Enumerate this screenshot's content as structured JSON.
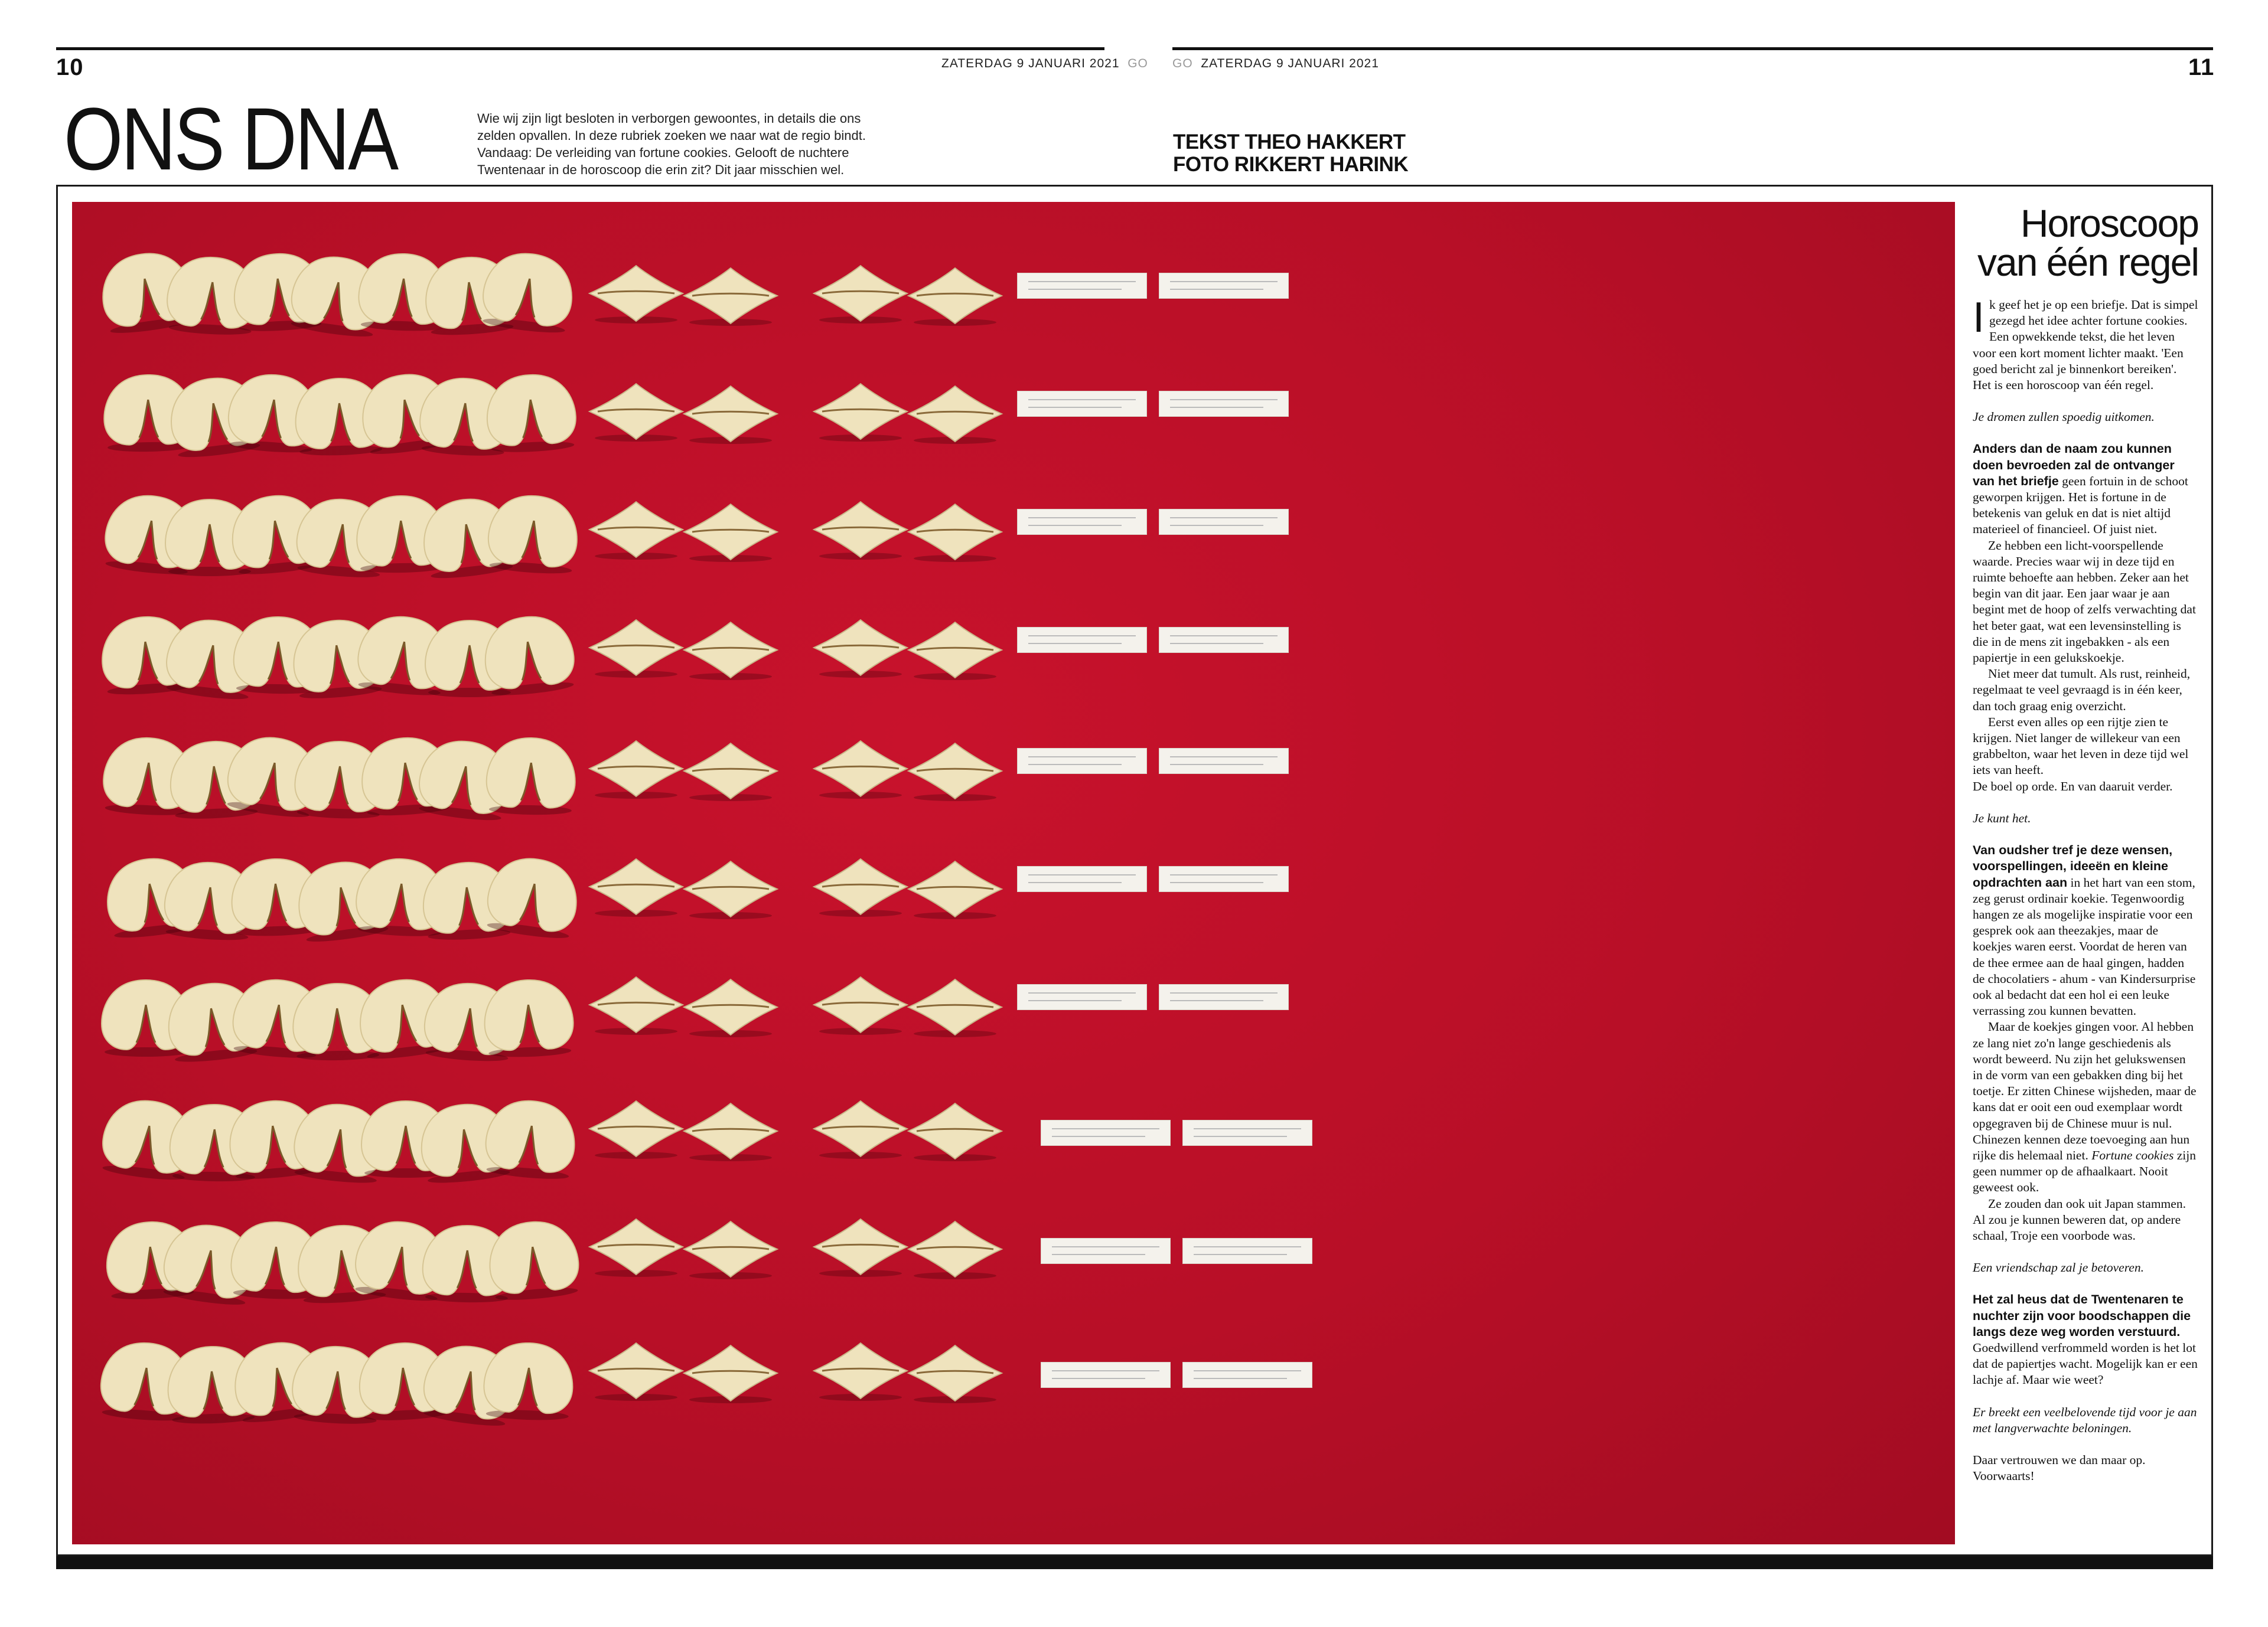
{
  "header": {
    "left_page_number": "10",
    "right_page_number": "11",
    "left_date": "ZATERDAG 9 JANUARI 2021",
    "left_section": "GO",
    "right_section": "GO",
    "right_date": "ZATERDAG 9 JANUARI 2021"
  },
  "rubric": {
    "title": "ONS DNA",
    "intro": "Wie wij zijn ligt besloten in verborgen gewoontes, in details die ons zelden opvallen. In deze rubriek zoeken we naar wat de regio bindt. Vandaag: De verleiding van fortune cookies. Gelooft de nuchtere Twentenaar in de horoscoop die erin zit? Dit jaar misschien wel."
  },
  "credits": {
    "text_line": "TEKST THEO HAKKERT",
    "photo_line": "FOTO RIKKERT HARINK"
  },
  "photo": {
    "subject": "fortune-cookies-on-red",
    "background_color": "#b80f27",
    "cookie_color": "#efe3bd",
    "slip_color": "#f4f2ec"
  },
  "article": {
    "headline_1": "Horoscoop",
    "headline_2": "van één regel",
    "dropcap": "I",
    "p1": "k geef het je op een briefje. Dat is simpel gezegd het idee achter fortune cookies. Een opwekkende tekst, die het leven voor een kort moment lichter maakt. 'Een goed bericht zal je binnenkort bereiken'.",
    "p2": "Het is een horoscoop van één regel.",
    "q1": "Je dromen zullen spoedig uitkomen.",
    "s2_lead": "Anders dan de naam zou kunnen doen bevroeden zal de ontvanger van het briefje",
    "s2_rest": " geen fortuin in de schoot geworpen krijgen. Het is fortune in de betekenis van geluk en dat is niet altijd materieel of financieel. Of juist niet.",
    "s2_p2": "Ze hebben een licht-voorspellende waarde. Precies waar wij in deze tijd en ruimte behoefte aan hebben. Zeker aan het begin van dit jaar. Een jaar waar je aan begint met de hoop of zelfs verwachting dat het beter gaat, wat een levensinstelling is die in de mens zit ingebakken - als een papiertje in een gelukskoekje.",
    "s2_p3": "Niet meer dat tumult. Als rust, reinheid, regelmaat te veel gevraagd is in één keer, dan toch graag enig overzicht.",
    "s2_p4": "Eerst even alles op een rijtje zien te krijgen. Niet langer de willekeur van een grabbelton, waar het leven in deze tijd wel iets van heeft.",
    "s2_p5": "De boel op orde. En van daaruit verder.",
    "q2": "Je kunt het.",
    "s3_lead": "Van oudsher tref je deze wensen, voorspellingen, ideeën en kleine opdrachten aan",
    "s3_rest": " in het hart van een stom, zeg gerust ordinair koekie. Tegenwoordig hangen ze als mogelijke inspiratie voor een gesprek ook aan theezakjes, maar de koekjes waren eerst. Voordat de heren van de thee ermee aan de haal gingen, hadden de chocolatiers - ahum - van Kindersurprise ook al bedacht dat een hol ei een leuke verrassing zou kunnen bevatten.",
    "s3_p2": "Maar de koekjes gingen voor. Al hebben ze lang niet zo'n lange geschiedenis als wordt beweerd. Nu zijn het gelukswensen in de vorm van een gebakken ding bij het toetje. Er zitten Chinese wijsheden, maar de kans dat er ooit een oud exemplaar wordt opgegraven bij de Chinese muur is nul. Chinezen kennen deze toevoeging aan hun rijke dis helemaal niet.",
    "s3_p2_italic": "Fortune cookies",
    "s3_p2_end": " zijn geen nummer op de afhaalkaart. Nooit geweest ook.",
    "s3_p3": "Ze zouden dan ook uit Japan stammen. Al zou je kunnen beweren dat, op andere schaal, Troje een voorbode was.",
    "q3": "Een vriendschap zal je betoveren.",
    "s4_lead": "Het zal heus dat de Twentenaren te nuchter zijn voor boodschappen die langs deze weg worden verstuurd.",
    "s4_rest": " Goedwillend verfrommeld worden is het lot dat de papiertjes wacht. Mogelijk kan er een lachje af. Maar wie weet?",
    "q4": "Er breekt een veelbelovende tijd voor je aan met langverwachte beloningen.",
    "closing_1": "Daar vertrouwen we dan maar op.",
    "closing_2": "Voorwaarts!"
  }
}
